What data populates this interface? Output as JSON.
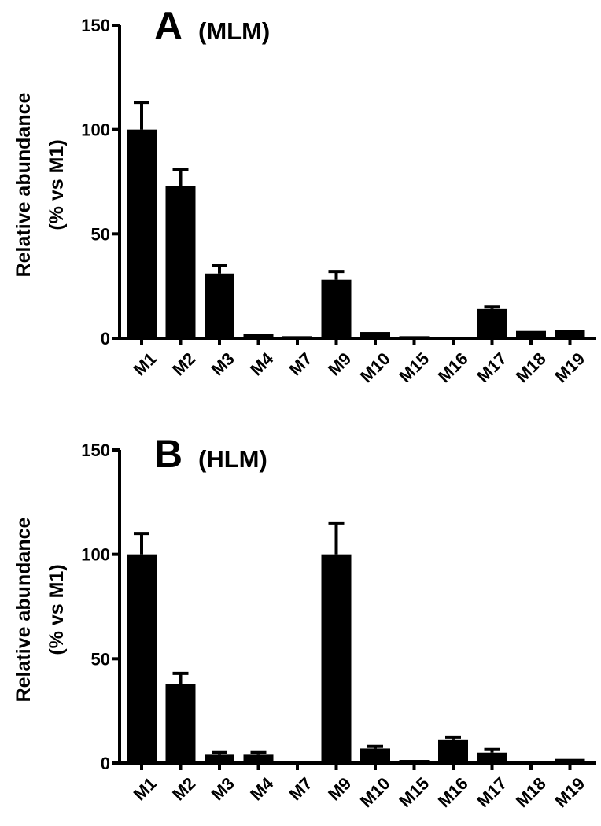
{
  "chart_data": [
    {
      "type": "bar",
      "panel_label": "A",
      "title": "(MLM)",
      "ylabel_lines": [
        "Relative abundance",
        "(% vs M1)"
      ],
      "xlabel": "",
      "ylim": [
        0,
        150
      ],
      "yticks": [
        0,
        50,
        100,
        150
      ],
      "categories": [
        "M1",
        "M2",
        "M3",
        "M4",
        "M7",
        "M9",
        "M10",
        "M15",
        "M16",
        "M17",
        "M18",
        "M19"
      ],
      "values": [
        100,
        73,
        31,
        2,
        1,
        28,
        3,
        1,
        0.5,
        14,
        3.5,
        4
      ],
      "errors": [
        13,
        8,
        4,
        0.5,
        0.5,
        4,
        0.5,
        0.5,
        0.3,
        1,
        0.5,
        0.5
      ]
    },
    {
      "type": "bar",
      "panel_label": "B",
      "title": "(HLM)",
      "ylabel_lines": [
        "Relative abundance",
        "(% vs M1)"
      ],
      "xlabel": "",
      "ylim": [
        0,
        150
      ],
      "yticks": [
        0,
        50,
        100,
        150
      ],
      "categories": [
        "M1",
        "M2",
        "M3",
        "M4",
        "M7",
        "M9",
        "M10",
        "M15",
        "M16",
        "M17",
        "M18",
        "M19"
      ],
      "values": [
        100,
        38,
        4,
        4,
        0.5,
        100,
        7,
        1.5,
        11,
        5,
        1,
        2
      ],
      "errors": [
        10,
        5,
        1,
        1,
        0.3,
        15,
        1,
        0.5,
        1.5,
        1.5,
        0.5,
        0.5
      ]
    }
  ]
}
